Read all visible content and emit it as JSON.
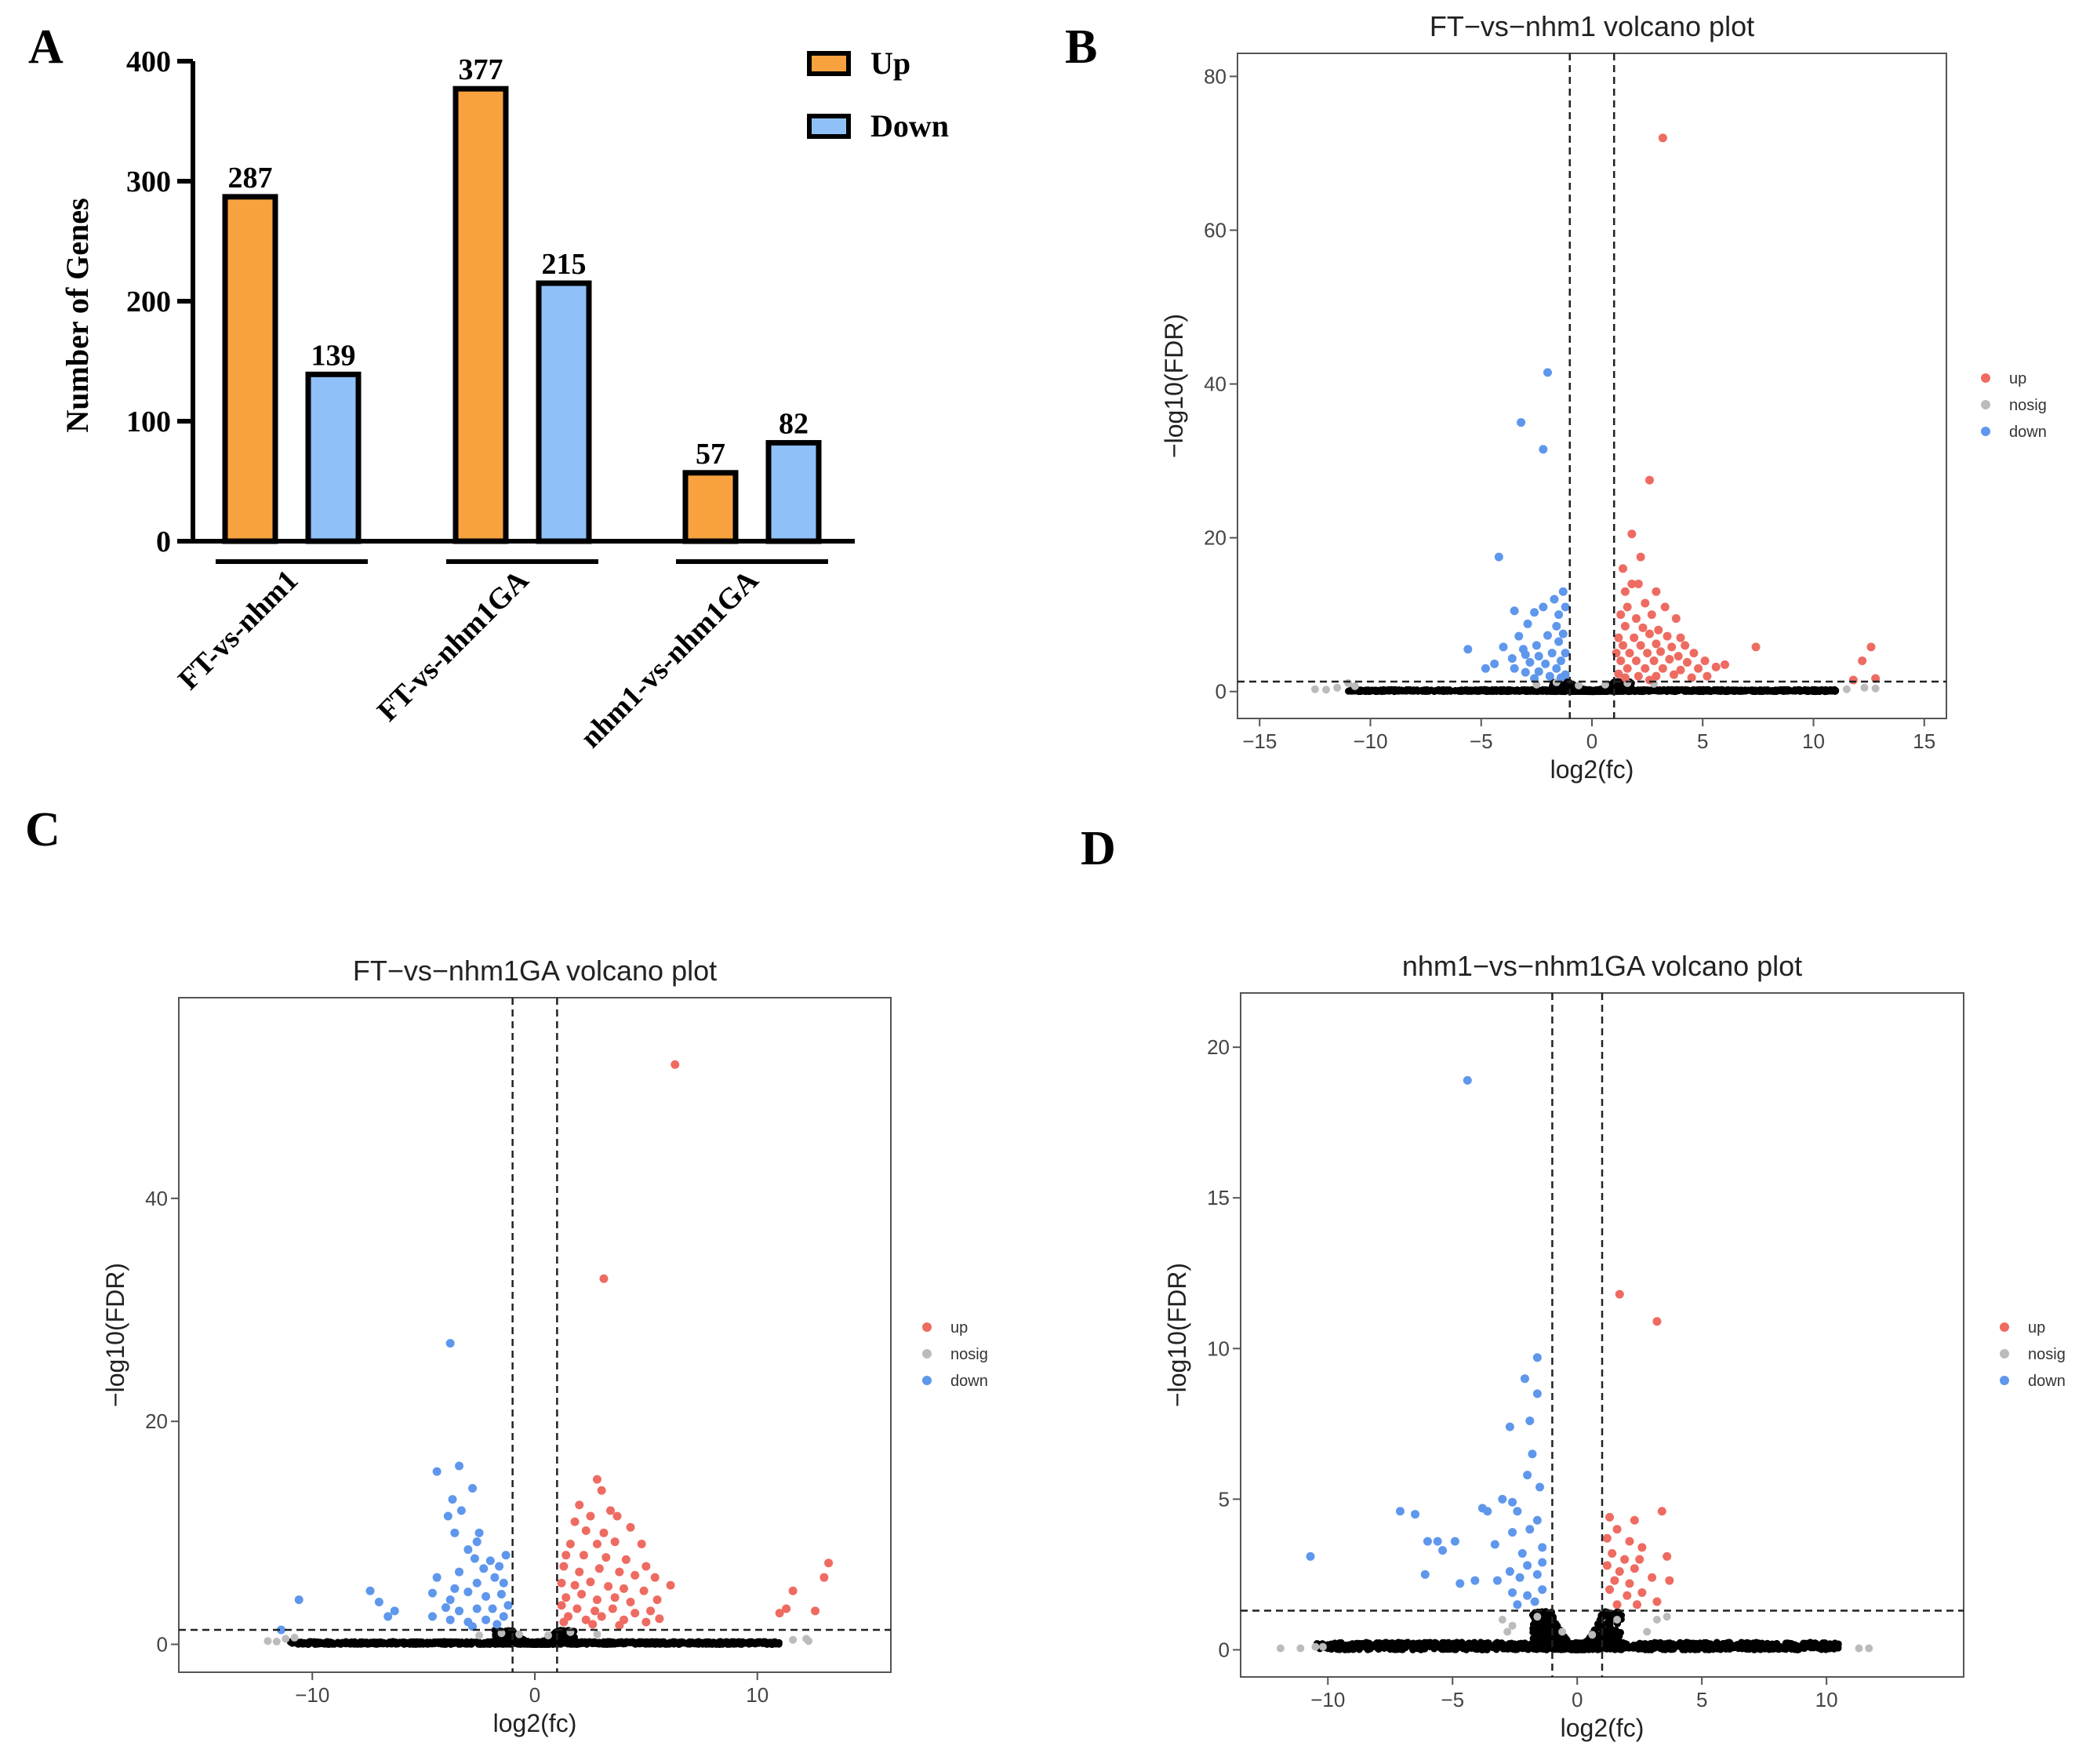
{
  "colors": {
    "up_bar": "#F8A23F",
    "down_bar": "#8FC0F8",
    "up_point": "#EE6B61",
    "down_point": "#5E97EC",
    "nosig_point": "#BBBBBB",
    "ns_point": "#000000"
  },
  "panel_labels": [
    "A",
    "B",
    "C",
    "D"
  ],
  "chart_data": [
    {
      "panel": "A",
      "type": "bar",
      "title": "",
      "ylabel": "Number of Genes",
      "xlabel": "",
      "ylim": [
        0,
        400
      ],
      "yticks": [
        0,
        100,
        200,
        300,
        400
      ],
      "categories": [
        "FT-vs-nhm1",
        "FT-vs-nhm1GA",
        "nhm1-vs-nhm1GA"
      ],
      "series": [
        {
          "name": "Up",
          "values": [
            287,
            377,
            57
          ]
        },
        {
          "name": "Down",
          "values": [
            139,
            215,
            82
          ]
        }
      ],
      "legend": [
        "Up",
        "Down"
      ],
      "legend_position": "top-right"
    },
    {
      "panel": "B",
      "type": "scatter",
      "title": "FT−vs−nhm1 volcano plot",
      "xlabel": "log2(fc)",
      "ylabel": "−log10(FDR)",
      "xlim": [
        -16,
        16
      ],
      "ylim": [
        -3.5,
        83
      ],
      "xticks": [
        -15,
        -10,
        -5,
        0,
        5,
        10,
        15
      ],
      "xtick_labels": [
        "−15",
        "−10",
        "−5",
        "0",
        "5",
        "10",
        "15"
      ],
      "yticks": [
        0,
        20,
        40,
        60,
        80
      ],
      "ytick_labels": [
        "0",
        "20",
        "40",
        "60",
        "80"
      ],
      "vlines": [
        -1,
        1
      ],
      "hline": 1.3,
      "legend": [
        "up",
        "nosig",
        "down"
      ],
      "legend_position": "right",
      "up_points": [
        [
          3.2,
          72
        ],
        [
          2.6,
          27.5
        ],
        [
          1.8,
          20.5
        ],
        [
          2.2,
          17.5
        ],
        [
          1.4,
          16
        ],
        [
          1.8,
          14
        ],
        [
          2.1,
          14
        ],
        [
          1.5,
          13
        ],
        [
          2.9,
          13
        ],
        [
          1.6,
          11
        ],
        [
          2.4,
          11.5
        ],
        [
          3.3,
          11
        ],
        [
          1.3,
          10
        ],
        [
          2.0,
          9.5
        ],
        [
          2.7,
          10
        ],
        [
          3.8,
          9.5
        ],
        [
          1.5,
          8.5
        ],
        [
          2.3,
          8.3
        ],
        [
          3.0,
          8
        ],
        [
          1.2,
          7
        ],
        [
          1.9,
          7
        ],
        [
          2.6,
          7.5
        ],
        [
          3.4,
          7.2
        ],
        [
          4.0,
          7
        ],
        [
          1.4,
          6
        ],
        [
          2.2,
          6
        ],
        [
          2.9,
          6.2
        ],
        [
          3.6,
          5.8
        ],
        [
          4.2,
          6
        ],
        [
          1.1,
          5
        ],
        [
          1.7,
          5
        ],
        [
          2.5,
          5
        ],
        [
          3.1,
          5.2
        ],
        [
          3.9,
          4.6
        ],
        [
          4.6,
          5
        ],
        [
          1.3,
          4
        ],
        [
          2.0,
          4
        ],
        [
          2.8,
          4
        ],
        [
          3.5,
          4.2
        ],
        [
          4.3,
          3.8
        ],
        [
          5.1,
          4
        ],
        [
          1.6,
          3
        ],
        [
          2.4,
          3
        ],
        [
          3.2,
          3
        ],
        [
          4.0,
          2.8
        ],
        [
          4.8,
          3
        ],
        [
          5.6,
          3.2
        ],
        [
          1.2,
          2.3
        ],
        [
          2.1,
          2
        ],
        [
          2.9,
          2
        ],
        [
          3.7,
          2.2
        ],
        [
          4.5,
          1.8
        ],
        [
          5.2,
          2
        ],
        [
          6.0,
          3.5
        ],
        [
          7.4,
          5.8
        ],
        [
          11.8,
          1.5
        ],
        [
          12.2,
          4
        ],
        [
          12.6,
          5.8
        ],
        [
          12.8,
          1.7
        ],
        [
          1.5,
          1.8
        ],
        [
          2.6,
          1.5
        ]
      ],
      "down_points": [
        [
          -2.0,
          41.5
        ],
        [
          -3.2,
          35
        ],
        [
          -2.2,
          31.5
        ],
        [
          -4.2,
          17.5
        ],
        [
          -1.3,
          13
        ],
        [
          -1.7,
          12
        ],
        [
          -2.2,
          11
        ],
        [
          -1.5,
          10
        ],
        [
          -1.2,
          11
        ],
        [
          -3.5,
          10.5
        ],
        [
          -2.6,
          10.3
        ],
        [
          -1.6,
          8.5
        ],
        [
          -2.9,
          8.8
        ],
        [
          -1.3,
          7.5
        ],
        [
          -2.0,
          7.3
        ],
        [
          -3.3,
          7.2
        ],
        [
          -1.5,
          6.5
        ],
        [
          -2.5,
          6
        ],
        [
          -3.1,
          5.5
        ],
        [
          -4.0,
          5.8
        ],
        [
          -5.6,
          5.5
        ],
        [
          -1.2,
          5
        ],
        [
          -1.8,
          5
        ],
        [
          -2.4,
          4.6
        ],
        [
          -3.0,
          4.8
        ],
        [
          -3.6,
          4.3
        ],
        [
          -1.4,
          4
        ],
        [
          -2.1,
          3.6
        ],
        [
          -2.8,
          3.8
        ],
        [
          -3.5,
          3
        ],
        [
          -4.4,
          3.6
        ],
        [
          -4.8,
          3
        ],
        [
          -1.6,
          3
        ],
        [
          -2.4,
          2.6
        ],
        [
          -1.2,
          2.2
        ],
        [
          -1.9,
          2
        ],
        [
          -3.0,
          2.5
        ],
        [
          -1.4,
          1.8
        ],
        [
          -2.6,
          1.7
        ]
      ],
      "nosig_points": [
        [
          -12.5,
          0.3
        ],
        [
          -12.0,
          0.25
        ],
        [
          -11.5,
          0.5
        ],
        [
          -11.0,
          1.1
        ],
        [
          -10.7,
          0.7
        ],
        [
          11.5,
          0.3
        ],
        [
          12.3,
          0.5
        ],
        [
          12.8,
          0.4
        ],
        [
          -1.6,
          1.2
        ],
        [
          1.6,
          1.1
        ],
        [
          -2.5,
          0.9
        ],
        [
          2.8,
          1.0
        ],
        [
          0.6,
          0.9
        ],
        [
          -0.6,
          0.8
        ]
      ],
      "ns_spread": 11
    },
    {
      "panel": "C",
      "type": "scatter",
      "title": "FT−vs−nhm1GA volcano plot",
      "xlabel": "log2(fc)",
      "ylabel": "−log10(FDR)",
      "xlim": [
        -16,
        16
      ],
      "ylim": [
        -2.5,
        58
      ],
      "xticks": [
        -10,
        0,
        10
      ],
      "xtick_labels": [
        "−10",
        "0",
        "10"
      ],
      "yticks": [
        0,
        20,
        40
      ],
      "ytick_labels": [
        "0",
        "20",
        "40"
      ],
      "vlines": [
        -1,
        1
      ],
      "hline": 1.3,
      "legend": [
        "up",
        "nosig",
        "down"
      ],
      "legend_position": "right",
      "up_points": [
        [
          6.3,
          52
        ],
        [
          3.1,
          32.8
        ],
        [
          2.8,
          14.8
        ],
        [
          3.0,
          13.8
        ],
        [
          2.0,
          12.5
        ],
        [
          3.4,
          12
        ],
        [
          2.5,
          11.5
        ],
        [
          1.8,
          11
        ],
        [
          3.7,
          11.5
        ],
        [
          2.3,
          10.2
        ],
        [
          3.1,
          10
        ],
        [
          4.3,
          10.5
        ],
        [
          1.6,
          9
        ],
        [
          2.8,
          9
        ],
        [
          3.6,
          9.2
        ],
        [
          4.8,
          9
        ],
        [
          1.4,
          8
        ],
        [
          2.2,
          8
        ],
        [
          3.2,
          7.8
        ],
        [
          4.1,
          7.6
        ],
        [
          5.0,
          7
        ],
        [
          1.3,
          7
        ],
        [
          2.0,
          6.5
        ],
        [
          2.9,
          6.8
        ],
        [
          3.8,
          6.5
        ],
        [
          4.5,
          6.2
        ],
        [
          5.4,
          6
        ],
        [
          1.2,
          5.5
        ],
        [
          1.8,
          5.3
        ],
        [
          2.5,
          5.6
        ],
        [
          3.3,
          5.2
        ],
        [
          4.0,
          5
        ],
        [
          4.9,
          4.8
        ],
        [
          6.1,
          5.3
        ],
        [
          1.4,
          4.2
        ],
        [
          2.1,
          4.5
        ],
        [
          2.8,
          4
        ],
        [
          3.6,
          4.2
        ],
        [
          4.3,
          3.8
        ],
        [
          5.5,
          4
        ],
        [
          1.2,
          3.5
        ],
        [
          1.9,
          3.2
        ],
        [
          2.7,
          3
        ],
        [
          3.5,
          3.2
        ],
        [
          4.5,
          2.8
        ],
        [
          5.2,
          3
        ],
        [
          1.5,
          2.5
        ],
        [
          2.3,
          2.2
        ],
        [
          3.0,
          2.5
        ],
        [
          4.0,
          2.2
        ],
        [
          5.0,
          2
        ],
        [
          5.6,
          2.3
        ],
        [
          1.3,
          2.0
        ],
        [
          2.6,
          1.8
        ],
        [
          3.8,
          1.7
        ],
        [
          11.3,
          3.2
        ],
        [
          11.6,
          4.8
        ],
        [
          12.6,
          3
        ],
        [
          13.0,
          6
        ],
        [
          13.2,
          7.3
        ],
        [
          11.0,
          2.8
        ]
      ],
      "down_points": [
        [
          -3.8,
          27
        ],
        [
          -4.4,
          15.5
        ],
        [
          -3.4,
          16
        ],
        [
          -3.7,
          13
        ],
        [
          -2.8,
          14
        ],
        [
          -3.3,
          12
        ],
        [
          -3.9,
          11.5
        ],
        [
          -2.5,
          10
        ],
        [
          -3.6,
          10
        ],
        [
          -2.6,
          9.2
        ],
        [
          -3.0,
          8.5
        ],
        [
          -1.3,
          8
        ],
        [
          -2.0,
          7.5
        ],
        [
          -2.7,
          7.7
        ],
        [
          -1.6,
          7
        ],
        [
          -2.3,
          6.8
        ],
        [
          -3.4,
          6.5
        ],
        [
          -1.8,
          6
        ],
        [
          -4.4,
          6
        ],
        [
          -1.4,
          5.5
        ],
        [
          -2.6,
          5.5
        ],
        [
          -3.6,
          5
        ],
        [
          -4.6,
          4.6
        ],
        [
          -1.5,
          4.5
        ],
        [
          -2.2,
          4.3
        ],
        [
          -3.0,
          4.7
        ],
        [
          -3.8,
          4
        ],
        [
          -7.4,
          4.8
        ],
        [
          -7.0,
          3.8
        ],
        [
          -1.2,
          3.5
        ],
        [
          -1.9,
          3.2
        ],
        [
          -2.6,
          3.2
        ],
        [
          -3.4,
          3
        ],
        [
          -4.0,
          3.3
        ],
        [
          -6.3,
          3
        ],
        [
          -6.6,
          2.5
        ],
        [
          -10.6,
          4
        ],
        [
          -1.4,
          2.5
        ],
        [
          -2.2,
          2.2
        ],
        [
          -3.0,
          2
        ],
        [
          -3.8,
          2.2
        ],
        [
          -4.6,
          2.5
        ],
        [
          -1.7,
          1.8
        ],
        [
          -2.8,
          1.6
        ],
        [
          -11.4,
          1.3
        ]
      ],
      "nosig_points": [
        [
          -12.0,
          0.3
        ],
        [
          -11.6,
          0.25
        ],
        [
          -11.2,
          0.5
        ],
        [
          -10.8,
          0.6
        ],
        [
          11.6,
          0.4
        ],
        [
          12.2,
          0.5
        ],
        [
          12.3,
          0.3
        ],
        [
          -1.5,
          1.0
        ],
        [
          1.6,
          1.1
        ],
        [
          -2.5,
          0.8
        ],
        [
          2.8,
          0.9
        ],
        [
          0.6,
          0.8
        ],
        [
          -0.7,
          0.9
        ]
      ],
      "ns_spread": 11
    },
    {
      "panel": "D",
      "type": "scatter",
      "title": "nhm1−vs−nhm1GA volcano plot",
      "xlabel": "log2(fc)",
      "ylabel": "−log10(FDR)",
      "xlim": [
        -13.5,
        15.5
      ],
      "ylim": [
        -0.9,
        21.8
      ],
      "xticks": [
        -10,
        -5,
        0,
        5,
        10
      ],
      "xtick_labels": [
        "−10",
        "−5",
        "0",
        "5",
        "10"
      ],
      "yticks": [
        0,
        5,
        10,
        15,
        20
      ],
      "ytick_labels": [
        "0",
        "5",
        "10",
        "15",
        "20"
      ],
      "vlines": [
        -1,
        1
      ],
      "hline": 1.3,
      "legend": [
        "up",
        "nosig",
        "down"
      ],
      "legend_position": "right",
      "up_points": [
        [
          1.7,
          11.8
        ],
        [
          3.2,
          10.9
        ],
        [
          3.4,
          4.6
        ],
        [
          1.3,
          4.4
        ],
        [
          2.3,
          4.3
        ],
        [
          1.6,
          4
        ],
        [
          1.2,
          3.7
        ],
        [
          2.1,
          3.6
        ],
        [
          2.6,
          3.4
        ],
        [
          1.4,
          3.2
        ],
        [
          1.9,
          3
        ],
        [
          2.5,
          3
        ],
        [
          3.6,
          3.1
        ],
        [
          1.2,
          2.8
        ],
        [
          1.7,
          2.6
        ],
        [
          2.3,
          2.7
        ],
        [
          1.5,
          2.3
        ],
        [
          2.1,
          2.2
        ],
        [
          3.0,
          2.4
        ],
        [
          3.7,
          2.3
        ],
        [
          1.3,
          2.0
        ],
        [
          2.0,
          1.8
        ],
        [
          2.6,
          1.9
        ],
        [
          1.6,
          1.5
        ],
        [
          2.4,
          1.5
        ],
        [
          3.2,
          1.6
        ]
      ],
      "down_points": [
        [
          -4.4,
          18.9
        ],
        [
          -1.6,
          9.7
        ],
        [
          -2.1,
          9
        ],
        [
          -1.6,
          8.5
        ],
        [
          -1.9,
          7.6
        ],
        [
          -2.7,
          7.4
        ],
        [
          -1.8,
          6.5
        ],
        [
          -2.0,
          5.8
        ],
        [
          -1.5,
          5.4
        ],
        [
          -3.0,
          5
        ],
        [
          -2.6,
          4.9
        ],
        [
          -3.6,
          4.6
        ],
        [
          -3.8,
          4.7
        ],
        [
          -2.4,
          4.6
        ],
        [
          -1.6,
          4.3
        ],
        [
          -6.5,
          4.5
        ],
        [
          -7.1,
          4.6
        ],
        [
          -1.9,
          4
        ],
        [
          -2.6,
          3.9
        ],
        [
          -6.0,
          3.6
        ],
        [
          -3.3,
          3.5
        ],
        [
          -1.4,
          3.4
        ],
        [
          -2.2,
          3.2
        ],
        [
          -4.9,
          3.6
        ],
        [
          -5.6,
          3.6
        ],
        [
          -5.4,
          3.3
        ],
        [
          -10.7,
          3.1
        ],
        [
          -1.4,
          2.9
        ],
        [
          -2.0,
          2.8
        ],
        [
          -2.7,
          2.6
        ],
        [
          -1.6,
          2.5
        ],
        [
          -2.3,
          2.4
        ],
        [
          -3.2,
          2.3
        ],
        [
          -4.1,
          2.3
        ],
        [
          -6.1,
          2.5
        ],
        [
          -4.7,
          2.2
        ],
        [
          -1.4,
          2.0
        ],
        [
          -2.0,
          1.8
        ],
        [
          -2.6,
          1.9
        ],
        [
          -1.7,
          1.6
        ],
        [
          -2.4,
          1.5
        ]
      ],
      "nosig_points": [
        [
          -11.9,
          0.05
        ],
        [
          -11.1,
          0.05
        ],
        [
          -10.5,
          0.1
        ],
        [
          -10.2,
          0.1
        ],
        [
          11.3,
          0.05
        ],
        [
          11.7,
          0.05
        ],
        [
          -2.6,
          0.8
        ],
        [
          -3.0,
          1.0
        ],
        [
          -2.8,
          0.6
        ],
        [
          3.2,
          1.0
        ],
        [
          3.6,
          1.1
        ],
        [
          2.8,
          0.6
        ],
        [
          0.6,
          0.5
        ],
        [
          -0.6,
          0.6
        ],
        [
          -1.6,
          1.1
        ],
        [
          1.6,
          1.0
        ]
      ],
      "ns_spread": 10.5
    }
  ]
}
